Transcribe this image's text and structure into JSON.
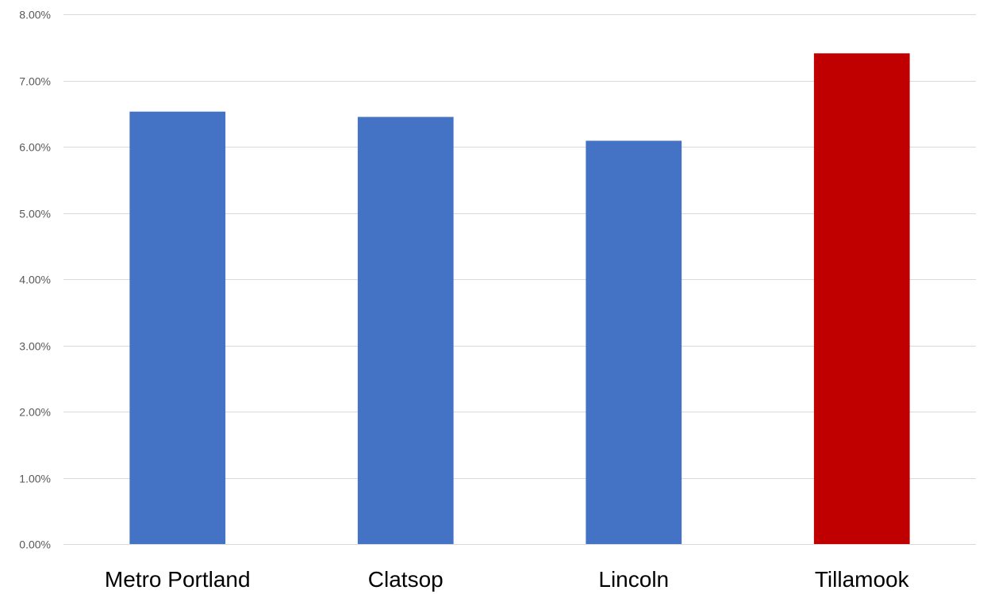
{
  "chart_data": {
    "type": "bar",
    "categories": [
      "Metro Portland",
      "Clatsop",
      "Lincoln",
      "Tillamook"
    ],
    "values": [
      6.53,
      6.45,
      6.09,
      7.41
    ],
    "value_unit": "percent",
    "ylim": [
      0,
      8
    ],
    "yticks": [
      0,
      1,
      2,
      3,
      4,
      5,
      6,
      7,
      8
    ],
    "ytick_labels": [
      "0.00%",
      "1.00%",
      "2.00%",
      "3.00%",
      "4.00%",
      "5.00%",
      "6.00%",
      "7.00%",
      "8.00%"
    ],
    "grid": true,
    "legend": "none",
    "bar_colors": [
      "#4472c4",
      "#4472c4",
      "#4472c4",
      "#c00000"
    ]
  }
}
